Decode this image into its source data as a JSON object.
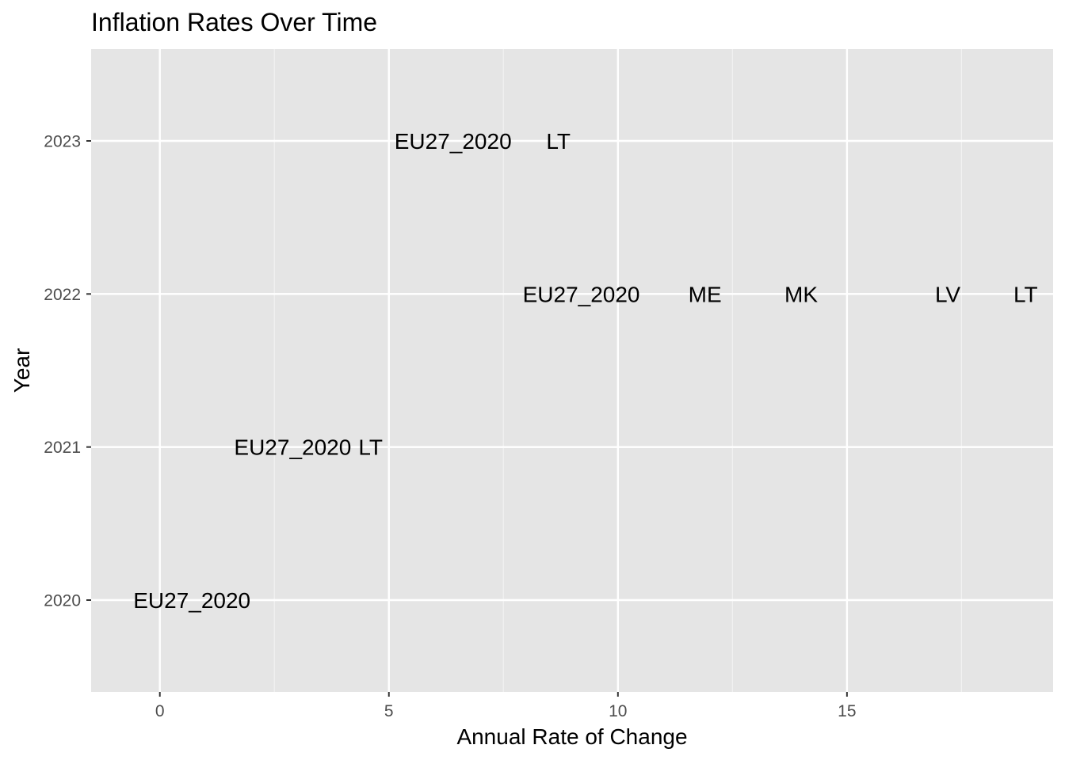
{
  "chart_data": {
    "type": "scatter",
    "title": "Inflation Rates Over Time",
    "xlabel": "Annual Rate of Change",
    "ylabel": "Year",
    "xlim": [
      -1.5,
      19.5
    ],
    "ylim": [
      2019.4,
      2023.6
    ],
    "x_ticks": [
      0,
      5,
      10,
      15
    ],
    "y_ticks": [
      2020,
      2021,
      2022,
      2023
    ],
    "grid": true,
    "panel_background": "#e5e5e5",
    "grid_color": "#ffffff",
    "points": [
      {
        "label": "EU27_2020",
        "x": 0.7,
        "y": 2020
      },
      {
        "label": "EU27_2020",
        "x": 2.9,
        "y": 2021
      },
      {
        "label": "LT",
        "x": 4.6,
        "y": 2021
      },
      {
        "label": "EU27_2020",
        "x": 9.2,
        "y": 2022
      },
      {
        "label": "ME",
        "x": 11.9,
        "y": 2022
      },
      {
        "label": "MK",
        "x": 14.0,
        "y": 2022
      },
      {
        "label": "LV",
        "x": 17.2,
        "y": 2022
      },
      {
        "label": "LT",
        "x": 18.9,
        "y": 2022
      },
      {
        "label": "EU27_2020",
        "x": 6.4,
        "y": 2023
      },
      {
        "label": "LT",
        "x": 8.7,
        "y": 2023
      }
    ]
  }
}
